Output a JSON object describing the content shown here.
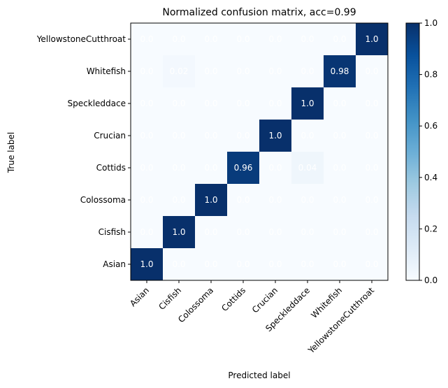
{
  "chart_data": {
    "type": "heatmap",
    "title": "Normalized confusion matrix, acc=0.99",
    "xlabel": "Predicted label",
    "ylabel": "True label",
    "x_categories": [
      "Asian",
      "Cisfish",
      "Colossoma",
      "Cottids",
      "Crucian",
      "Speckleddace",
      "Whitefish",
      "YellowstoneCutthroat"
    ],
    "y_categories_top_to_bottom": [
      "YellowstoneCutthroat",
      "Whitefish",
      "Speckleddace",
      "Crucian",
      "Cottids",
      "Colossoma",
      "Cisfish",
      "Asian"
    ],
    "values_top_to_bottom": [
      [
        "0.0",
        "0.0",
        "0.0",
        "0.0",
        "0.0",
        "0.0",
        "0.0",
        "1.0"
      ],
      [
        "0.0",
        "0.02",
        "0.0",
        "0.0",
        "0.0",
        "0.0",
        "0.98",
        "0.0"
      ],
      [
        "0.0",
        "0.0",
        "0.0",
        "0.0",
        "0.0",
        "1.0",
        "0.0",
        "0.0"
      ],
      [
        "0.0",
        "0.0",
        "0.0",
        "0.0",
        "1.0",
        "0.0",
        "0.0",
        "0.0"
      ],
      [
        "0.0",
        "0.0",
        "0.0",
        "0.96",
        "0.0",
        "0.04",
        "0.0",
        "0.0"
      ],
      [
        "0.0",
        "0.0",
        "1.0",
        "0.0",
        "0.0",
        "0.0",
        "0.0",
        "0.0"
      ],
      [
        "0.0",
        "1.0",
        "0.0",
        "0.0",
        "0.0",
        "0.0",
        "0.0",
        "0.0"
      ],
      [
        "1.0",
        "0.0",
        "0.0",
        "0.0",
        "0.0",
        "0.0",
        "0.0",
        "0.0"
      ]
    ],
    "colorbar": {
      "colormap": "Blues",
      "range": [
        0.0,
        1.0
      ],
      "ticks": [
        "0.0",
        "0.2",
        "0.4",
        "0.6",
        "0.8",
        "1.0"
      ]
    },
    "grid": false
  }
}
